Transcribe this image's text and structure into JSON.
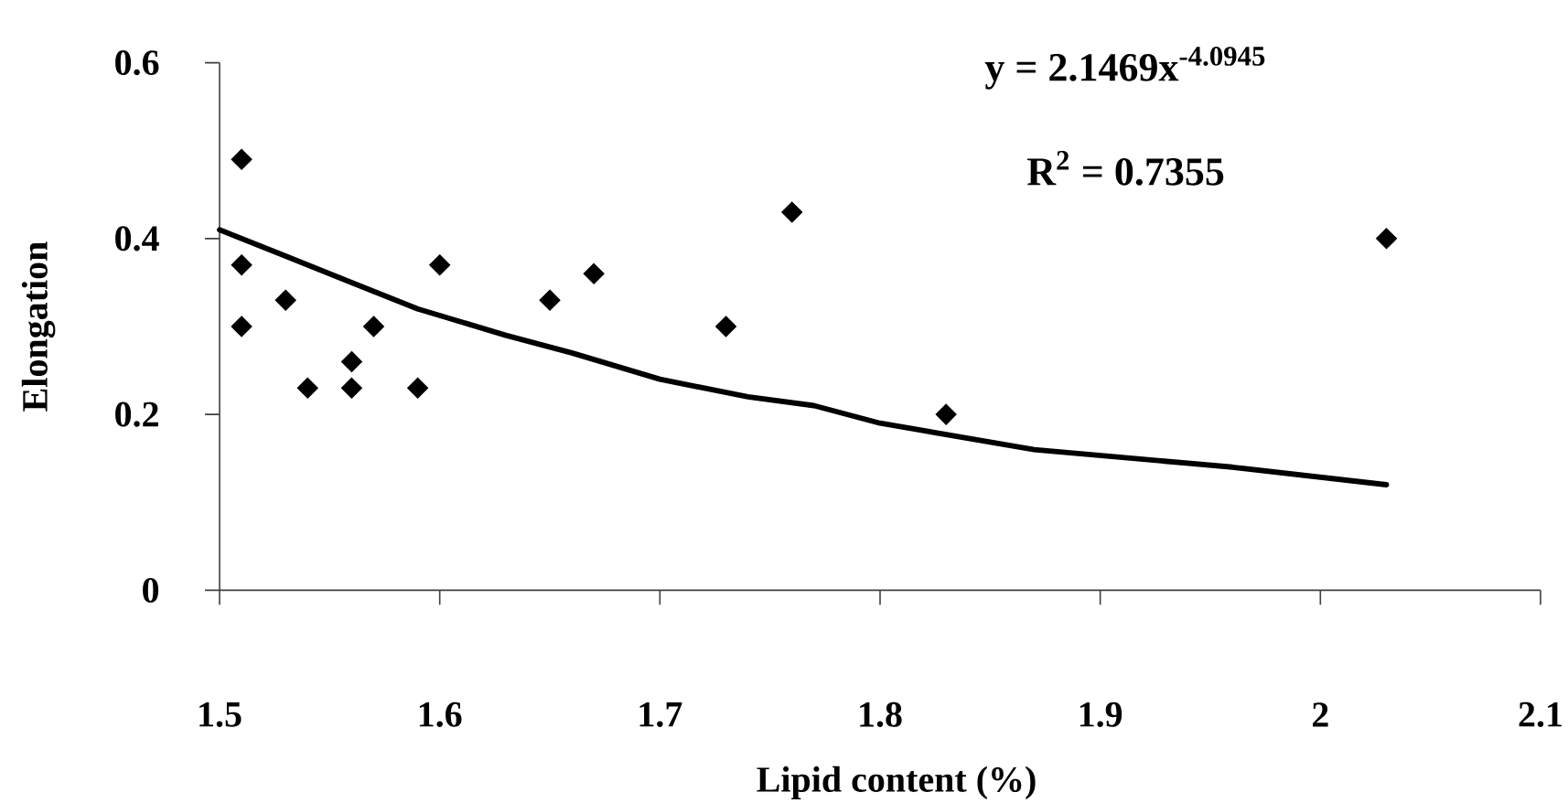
{
  "chart_data": {
    "type": "scatter",
    "xlabel": "Lipid content (%)",
    "ylabel": "Elongation",
    "annotations": [
      "y = 2.1469x$^{-4.0945}$",
      "R$^{2}$ = 0.7355"
    ],
    "marker": "diamond",
    "xlim": [
      1.5,
      2.1
    ],
    "ylim": [
      0,
      0.6
    ],
    "xticks": [
      1.5,
      1.6,
      1.7,
      1.8,
      1.9,
      2,
      2.1
    ],
    "yticks": [
      0,
      0.2,
      0.4,
      0.6
    ],
    "series": [
      {
        "color": "#000000",
        "x": [
          1.51,
          1.51,
          1.51,
          1.53,
          1.54,
          1.56,
          1.56,
          1.57,
          1.59,
          1.6,
          1.65,
          1.67,
          1.73,
          1.76,
          1.83,
          2.03
        ],
        "values": [
          0.49,
          0.37,
          0.3,
          0.33,
          0.23,
          0.26,
          0.23,
          0.3,
          0.23,
          0.37,
          0.33,
          0.36,
          0.3,
          0.43,
          0.2,
          0.4
        ]
      },
      {
        "type": "line",
        "color": "#000000",
        "marker": "none",
        "line_style": "solid",
        "x": [
          1.5,
          1.53,
          1.56,
          1.59,
          1.63,
          1.66,
          1.7,
          1.74,
          1.77,
          1.8,
          1.87,
          1.96,
          2.03
        ],
        "values": [
          0.41,
          0.38,
          0.35,
          0.32,
          0.29,
          0.27,
          0.24,
          0.22,
          0.21,
          0.19,
          0.16,
          0.14,
          0.12
        ]
      }
    ]
  }
}
